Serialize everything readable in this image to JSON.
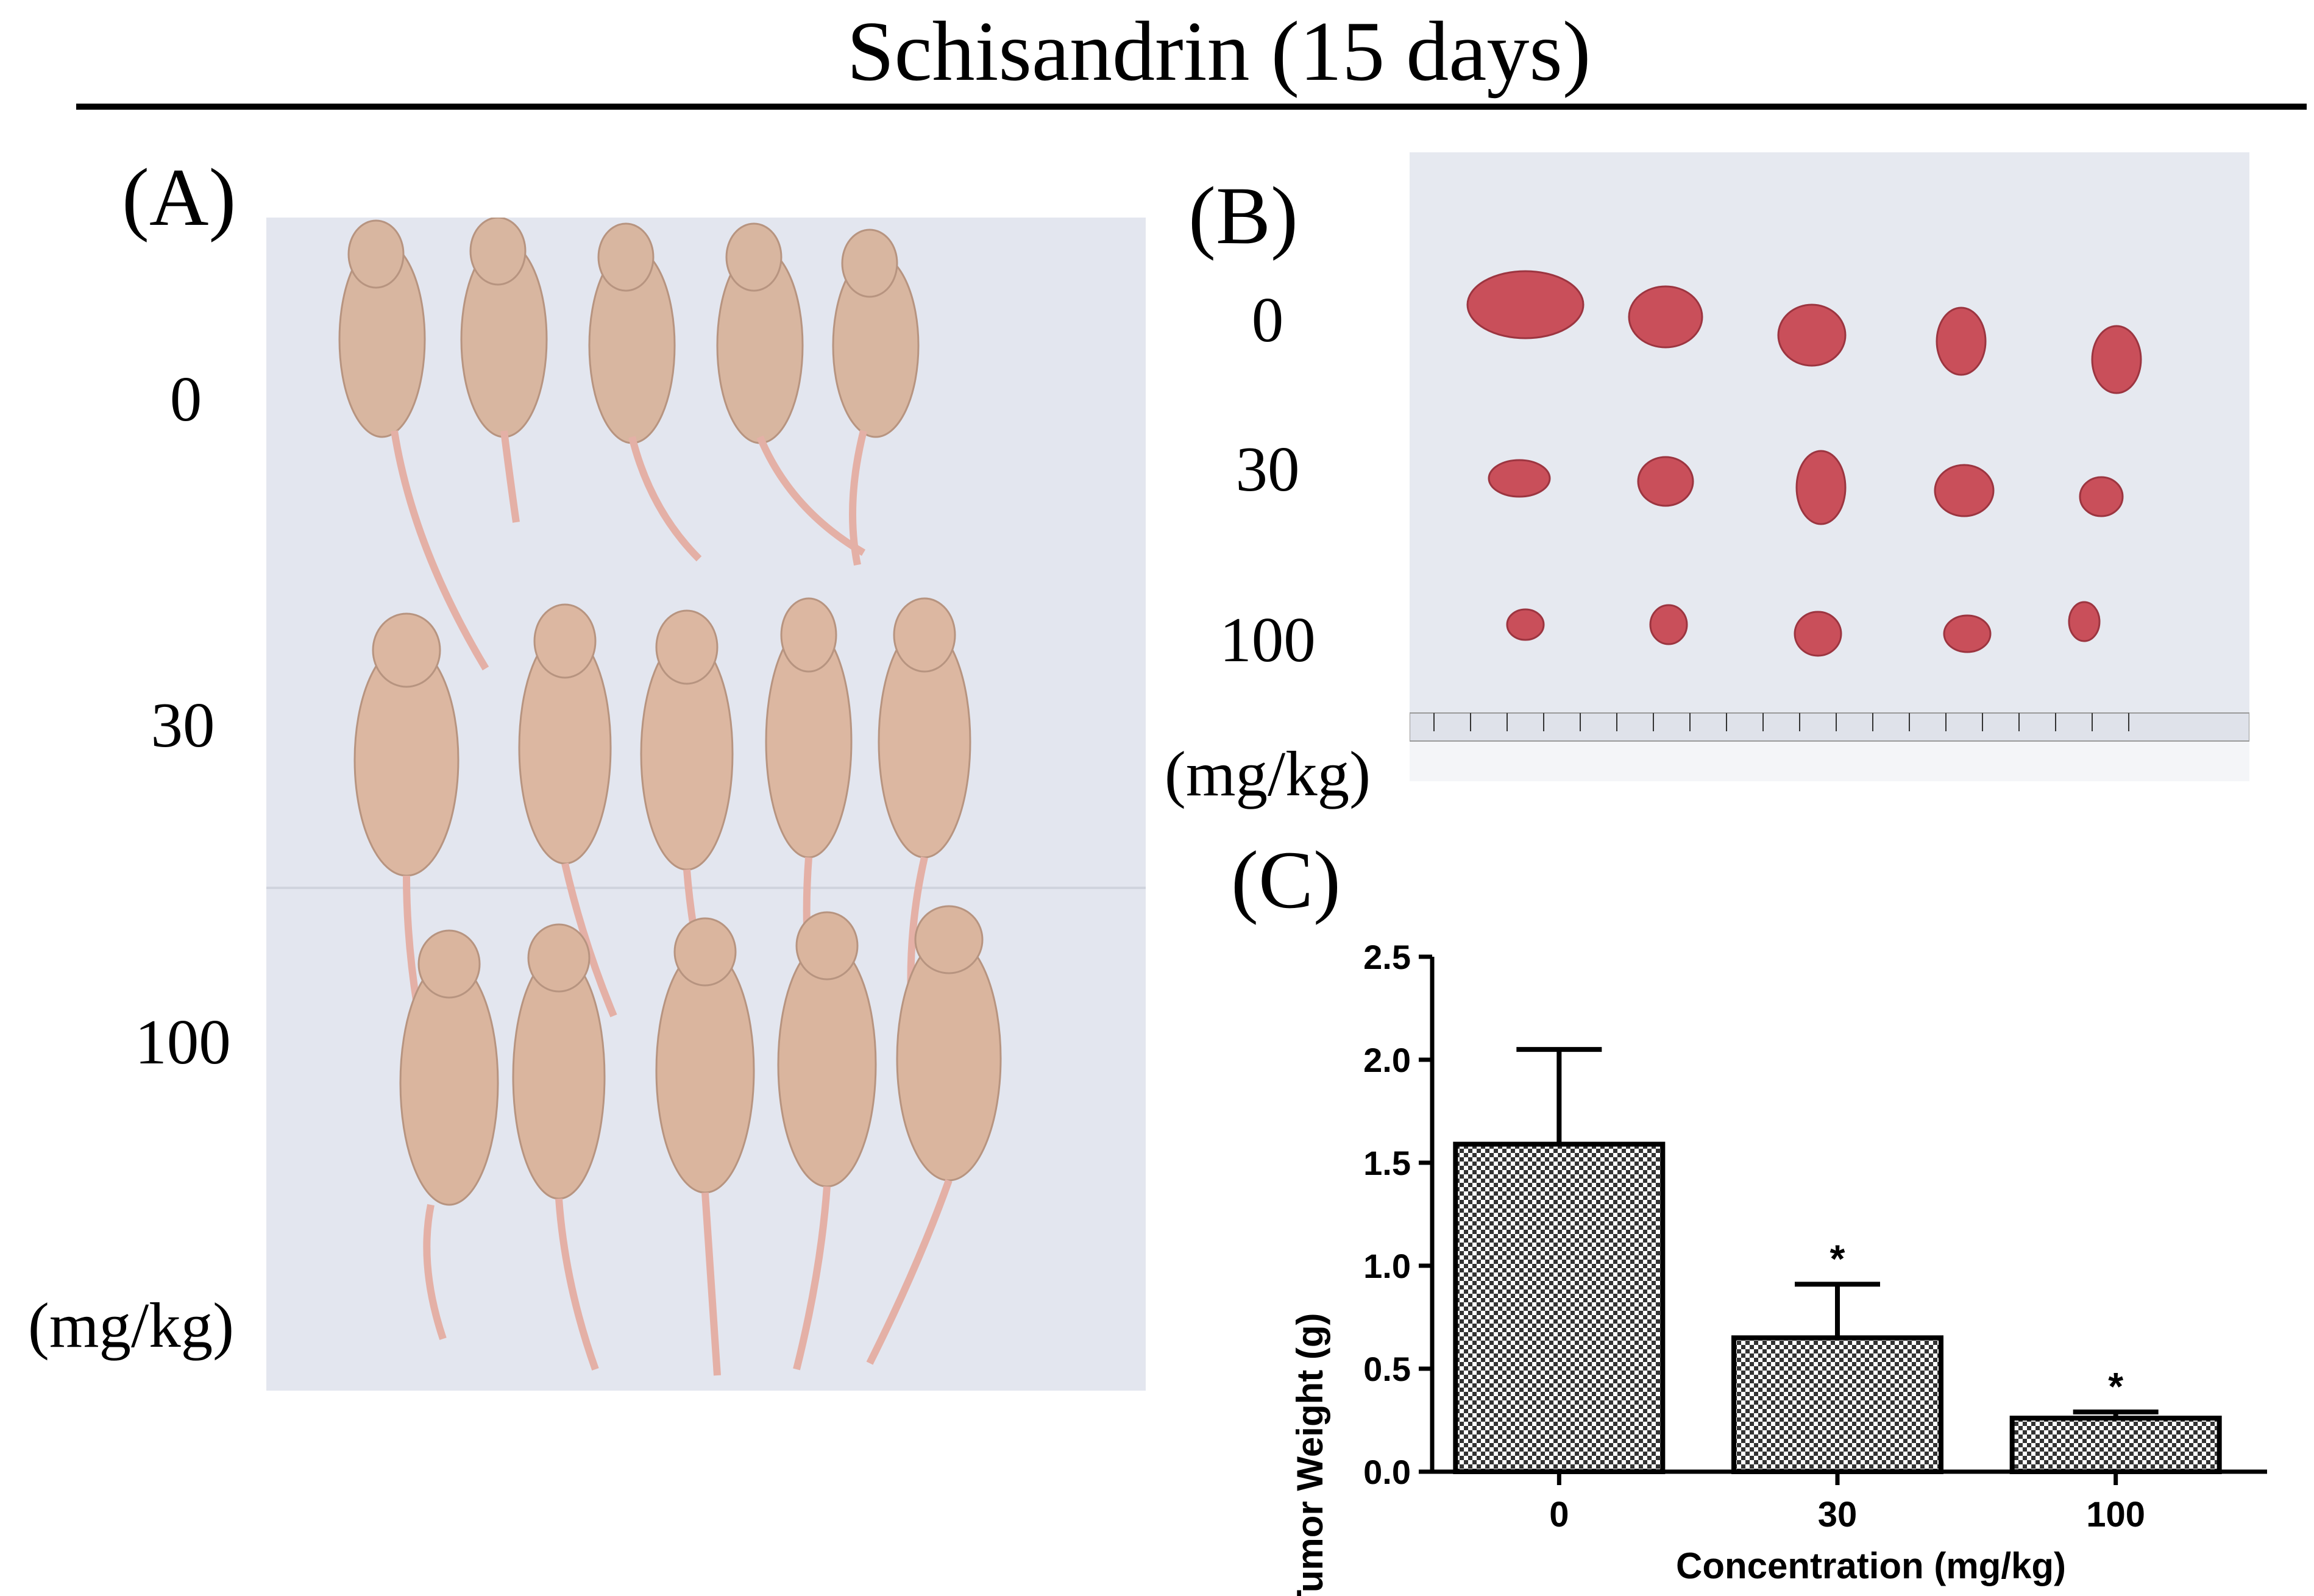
{
  "figure": {
    "title": "Schisandrin (15 days)"
  },
  "panel_a": {
    "label": "(A)",
    "rows": [
      "0",
      "30",
      "100"
    ],
    "unit": "(mg/kg)",
    "photo_icon": "mice-photo-icon"
  },
  "panel_b": {
    "label": "(B)",
    "rows": [
      "0",
      "30",
      "100"
    ],
    "unit": "(mg/kg)",
    "ruler_ticks": [
      "1",
      "2",
      "3",
      "4",
      "5",
      "6",
      "7",
      "8",
      "9",
      "10",
      "11",
      "12",
      "13",
      "14",
      "15",
      "16",
      "17",
      "18",
      "19",
      "20"
    ]
  },
  "panel_c": {
    "label": "(C)"
  },
  "chart_data": {
    "type": "bar",
    "categories": [
      "0",
      "30",
      "100"
    ],
    "values": [
      1.59,
      0.65,
      0.26
    ],
    "errors": [
      0.46,
      0.26,
      0.03
    ],
    "significance": [
      "",
      "*",
      "*"
    ],
    "xlabel": "Concentration (mg/kg)",
    "ylabel": "Tumor Weight (g)",
    "ylim": [
      0,
      2.5
    ],
    "yticks": [
      "0.0",
      "0.5",
      "1.0",
      "1.5",
      "2.0",
      "2.5"
    ],
    "bar_pattern": "checkered",
    "grid": false
  },
  "colors": {
    "mouse_skin": "#dcb9a3",
    "tumor": "#c8505a",
    "background_paper": "#e3e6ef"
  }
}
